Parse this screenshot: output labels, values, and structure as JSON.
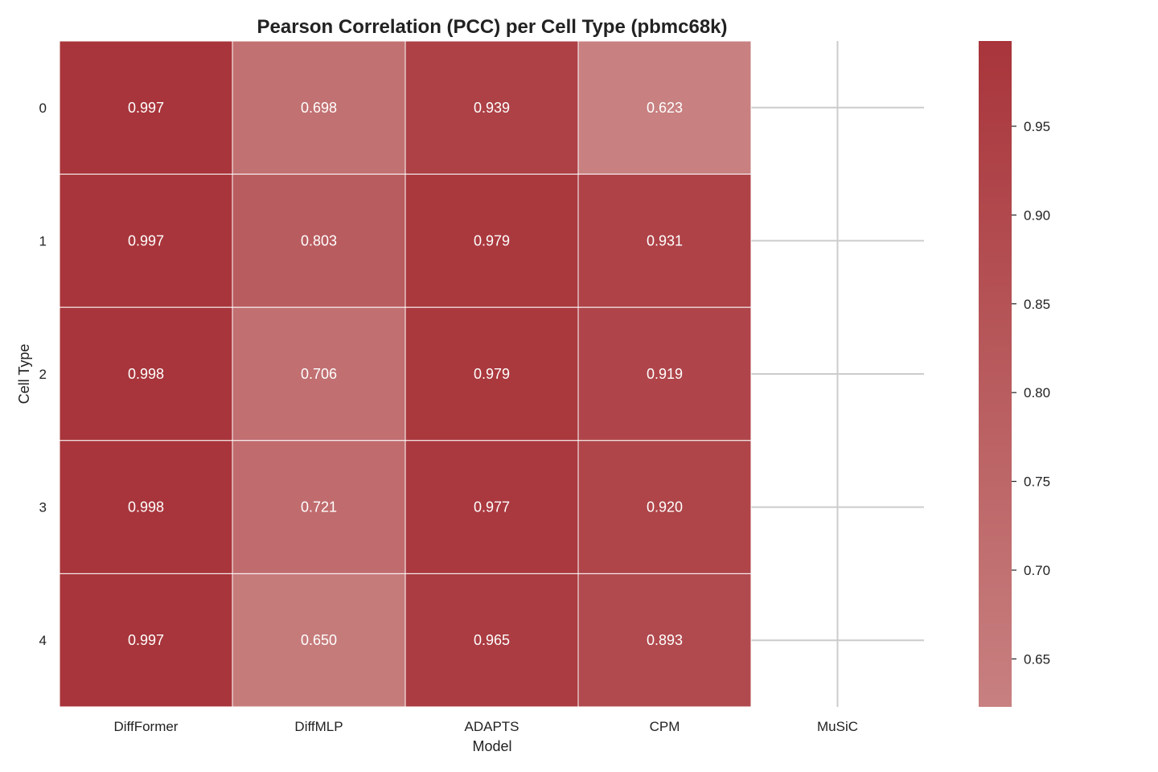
{
  "chart_data": {
    "type": "heatmap",
    "title": "Pearson Correlation (PCC) per Cell Type (pbmc68k)",
    "xlabel": "Model",
    "ylabel": "Cell Type",
    "x_categories": [
      "DiffFormer",
      "DiffMLP",
      "ADAPTS",
      "CPM",
      "MuSiC"
    ],
    "y_categories": [
      "0",
      "1",
      "2",
      "3",
      "4"
    ],
    "values": [
      [
        0.997,
        0.698,
        0.939,
        0.623,
        null
      ],
      [
        0.997,
        0.803,
        0.979,
        0.931,
        null
      ],
      [
        0.998,
        0.706,
        0.979,
        0.919,
        null
      ],
      [
        0.998,
        0.721,
        0.977,
        0.92,
        null
      ],
      [
        0.997,
        0.65,
        0.965,
        0.893,
        null
      ]
    ],
    "value_labels": [
      [
        "0.997",
        "0.698",
        "0.939",
        "0.623",
        ""
      ],
      [
        "0.997",
        "0.803",
        "0.979",
        "0.931",
        ""
      ],
      [
        "0.998",
        "0.706",
        "0.979",
        "0.919",
        ""
      ],
      [
        "0.998",
        "0.721",
        "0.977",
        "0.920",
        ""
      ],
      [
        "0.997",
        "0.650",
        "0.965",
        "0.893",
        ""
      ]
    ],
    "colorbar": {
      "vmin": 0.623,
      "vmax": 0.998,
      "ticks": [
        0.65,
        0.7,
        0.75,
        0.8,
        0.85,
        0.9,
        0.95
      ],
      "tick_labels": [
        "0.65",
        "0.70",
        "0.75",
        "0.80",
        "0.85",
        "0.90",
        "0.95"
      ],
      "low_color": "#c88080",
      "high_color": "#a8353b"
    },
    "grid": true,
    "grid_color": "#cccccc",
    "background": "#ffffff"
  }
}
